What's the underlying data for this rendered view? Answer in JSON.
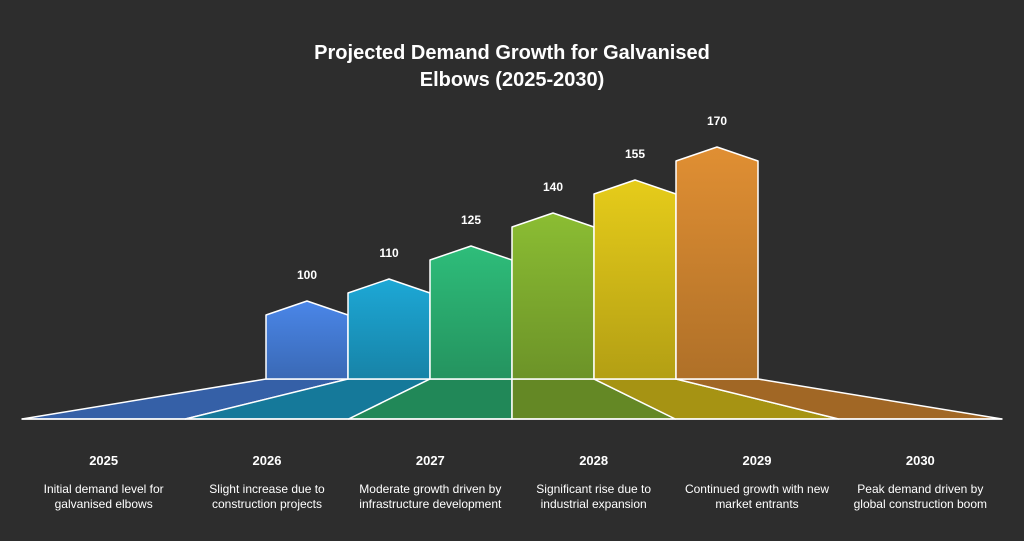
{
  "chart_data": {
    "type": "bar",
    "title_lines": [
      "Projected Demand Growth for Galvanised",
      "Elbows (2025-2030)"
    ],
    "categories": [
      "2025",
      "2026",
      "2027",
      "2028",
      "2029",
      "2030"
    ],
    "values": [
      100,
      110,
      125,
      140,
      155,
      170
    ],
    "descriptions": [
      "Initial demand level for galvanised elbows",
      "Slight increase due to construction projects",
      "Moderate growth driven by infrastructure development",
      "Significant rise due to industrial expansion",
      "Continued growth with new market entrants",
      "Peak demand driven by global construction boom"
    ],
    "colors": [
      "#4a86e8",
      "#1da8d6",
      "#2ebd7a",
      "#8bbd33",
      "#e6cc1a",
      "#e08f33"
    ],
    "xlabel": "",
    "ylabel": "",
    "ylim": [
      0,
      170
    ]
  }
}
